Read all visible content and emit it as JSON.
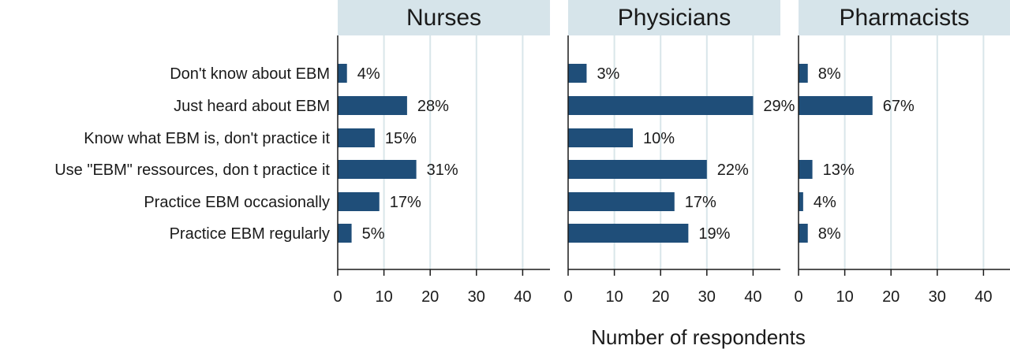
{
  "chart_data": {
    "type": "bar",
    "orientation": "horizontal",
    "categories": [
      "Don't know about EBM",
      "Just heard about EBM",
      "Know what EBM is, don't practice it",
      "Use \"EBM\" ressources, don t practice it",
      "Practice EBM occasionally",
      "Practice EBM regularly"
    ],
    "panels": [
      {
        "title": "Nurses",
        "values": [
          2,
          15,
          8,
          17,
          9,
          3
        ],
        "labels": [
          "4%",
          "28%",
          "15%",
          "31%",
          "17%",
          "5%"
        ]
      },
      {
        "title": "Physicians",
        "values": [
          4,
          40,
          14,
          30,
          23,
          26
        ],
        "labels": [
          "3%",
          "29%",
          "10%",
          "22%",
          "17%",
          "19%"
        ]
      },
      {
        "title": "Pharmacists",
        "values": [
          2,
          16,
          0,
          3,
          1,
          2
        ],
        "labels": [
          "8%",
          "67%",
          "",
          "13%",
          "4%",
          "8%"
        ]
      }
    ],
    "xlabel": "Number of respondents",
    "xlim": [
      0,
      45
    ],
    "xticks": [
      0,
      10,
      20,
      30,
      40
    ],
    "grid": true,
    "colors": {
      "bar": "#1f4e79",
      "panel_header": "#d6e4ea",
      "grid": "#d9e6ea"
    }
  }
}
